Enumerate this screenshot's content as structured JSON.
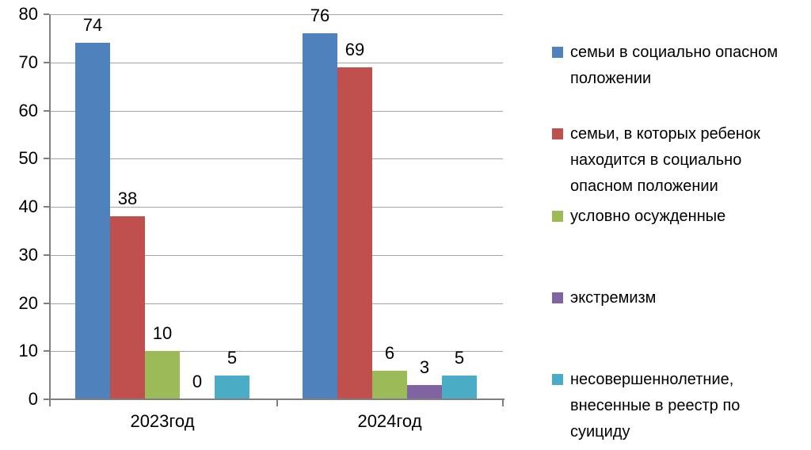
{
  "chart_data": {
    "type": "bar",
    "title": "",
    "xlabel": "",
    "ylabel": "",
    "categories": [
      "2023год",
      "2024год"
    ],
    "series": [
      {
        "name": "семьи в социально опасном положении",
        "color": "#4F81BD",
        "values": [
          74,
          76
        ],
        "legend_lines": [
          "семьи в социально опасном",
          "положении"
        ]
      },
      {
        "name": "семьи, в которых ребенок находится в социально опасном положении",
        "color": "#C0504D",
        "values": [
          38,
          69
        ],
        "legend_lines": [
          "семьи, в которых ребенок",
          "находится в социально",
          "опасном положении"
        ]
      },
      {
        "name": "условно осужденные",
        "color": "#9BBB59",
        "values": [
          10,
          6
        ],
        "legend_lines": [
          "условно осужденные"
        ]
      },
      {
        "name": "экстремизм",
        "color": "#8064A2",
        "values": [
          0,
          3
        ],
        "legend_lines": [
          "экстремизм"
        ]
      },
      {
        "name": "несовершеннолетние, внесенные в реестр по суициду",
        "color": "#4BACC6",
        "values": [
          5,
          5
        ],
        "legend_lines": [
          "несовершеннолетние,",
          "внесенные в реестр по",
          "суициду"
        ]
      }
    ],
    "ylim": [
      0,
      80
    ],
    "ytick_step": 10,
    "yticks": [
      0,
      10,
      20,
      30,
      40,
      50,
      60,
      70,
      80
    ],
    "grid": true,
    "legend_position": "right",
    "data_labels_shown": true
  }
}
